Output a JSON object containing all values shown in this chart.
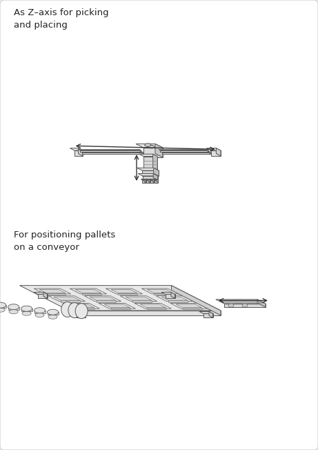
{
  "bg_color": "#eeeeee",
  "panel_color": "#ffffff",
  "line_color": "#555555",
  "title1": "As Z–axis for picking\nand placing",
  "title2": "For positioning pallets\non a conveyor",
  "title_fontsize": 9.5,
  "title_color": "#222222",
  "fig_width": 4.61,
  "fig_height": 6.52,
  "dpi": 100
}
